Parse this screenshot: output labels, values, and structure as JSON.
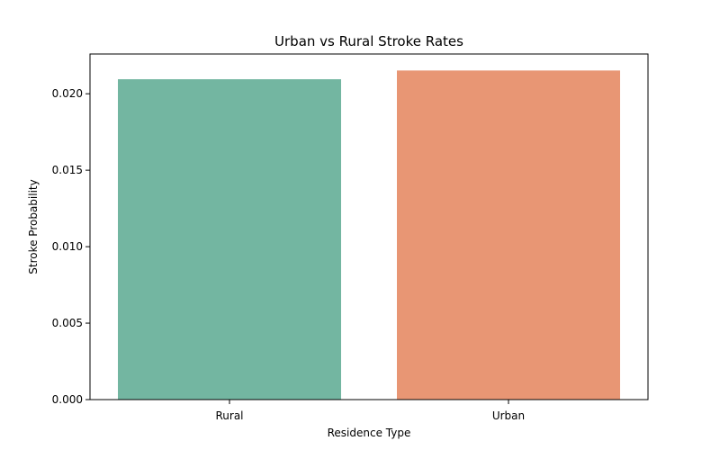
{
  "chart_data": {
    "type": "bar",
    "title": "Urban vs Rural Stroke Rates",
    "xlabel": "Residence Type",
    "ylabel": "Stroke Probability",
    "categories": [
      "Rural",
      "Urban"
    ],
    "values": [
      0.02095,
      0.02152
    ],
    "colors": [
      "#73b6a1",
      "#e89674"
    ],
    "ylim": [
      0,
      0.0226
    ],
    "yticks": [
      0.0,
      0.005,
      0.01,
      0.015,
      0.02
    ],
    "ytick_labels": [
      "0.000",
      "0.005",
      "0.010",
      "0.015",
      "0.020"
    ],
    "grid": false,
    "legend": false
  }
}
